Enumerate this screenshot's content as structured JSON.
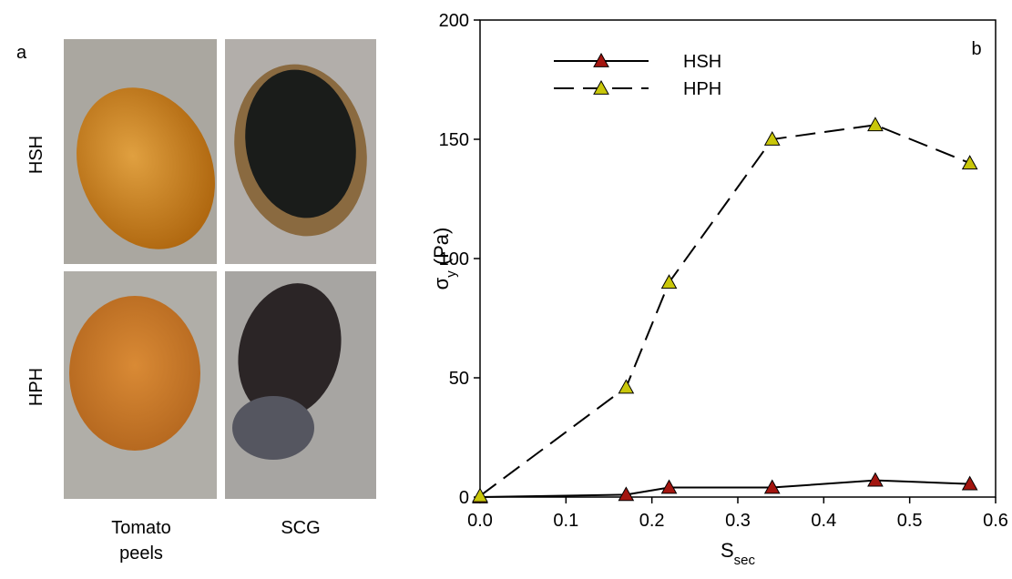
{
  "panel_a": {
    "label": "a",
    "rows": [
      "HSH",
      "HPH"
    ],
    "columns": [
      "Tomato peels",
      "SCG"
    ]
  },
  "chart_data": {
    "type": "line",
    "panel_label": "b",
    "xlabel": {
      "symbol": "S",
      "subscript": "sec"
    },
    "ylabel": {
      "symbol": "σ",
      "subscript": "y",
      "unit": "(Pa)"
    },
    "x": [
      0,
      0.17,
      0.22,
      0.34,
      0.46,
      0.57
    ],
    "series": [
      {
        "name": "HSH",
        "color": "#a3150f",
        "line_style": "solid",
        "values": [
          0,
          1,
          4,
          4,
          7,
          5.5
        ]
      },
      {
        "name": "HPH",
        "color": "#c9c70a",
        "line_style": "dashed",
        "values": [
          0.5,
          46,
          90,
          150,
          156,
          140
        ]
      }
    ],
    "xlim": [
      0,
      0.6
    ],
    "xticks": [
      {
        "value": 0,
        "label": "0.0"
      },
      0.1,
      0.2,
      0.3,
      0.4,
      0.5,
      0.6
    ],
    "ylim": [
      0,
      200
    ],
    "yticks": [
      0,
      50,
      100,
      150,
      200
    ],
    "legend": "upper left",
    "grid": false
  }
}
